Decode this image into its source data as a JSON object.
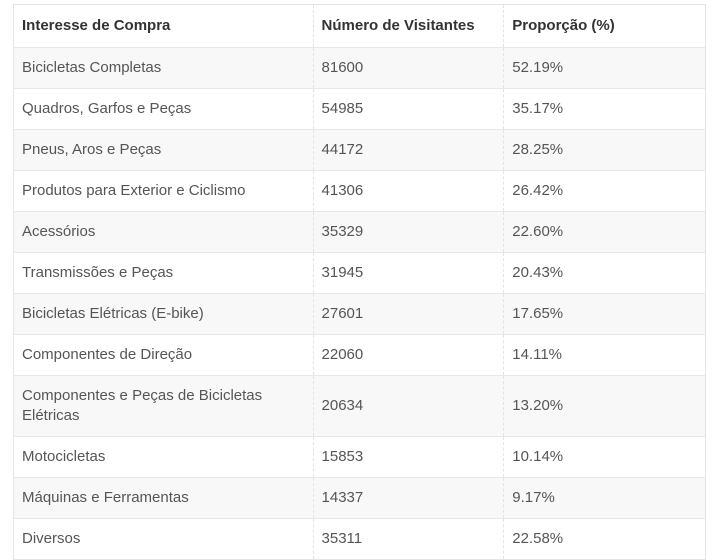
{
  "colors": {
    "stripe_background": "#f8f8f8",
    "row_background": "#ffffff",
    "border": "#e8e8e8",
    "column_separator": "#e3e3e3",
    "header_text": "#333333",
    "cell_text": "#555555"
  },
  "table": {
    "columns": {
      "interest": "Interesse de Compra",
      "visitors": "Número de Visitantes",
      "proportion": "Proporção (%)"
    },
    "rows": [
      {
        "interest": "Bicicletas Completas",
        "visitors": "81600",
        "proportion": "52.19%"
      },
      {
        "interest": "Quadros, Garfos e Peças",
        "visitors": "54985",
        "proportion": "35.17%"
      },
      {
        "interest": "Pneus, Aros e Peças",
        "visitors": "44172",
        "proportion": "28.25%"
      },
      {
        "interest": "Produtos para Exterior e Ciclismo",
        "visitors": "41306",
        "proportion": "26.42%"
      },
      {
        "interest": "Acessórios",
        "visitors": "35329",
        "proportion": "22.60%"
      },
      {
        "interest": "Transmissões e Peças",
        "visitors": "31945",
        "proportion": "20.43%"
      },
      {
        "interest": "Bicicletas Elétricas (E-bike)",
        "visitors": "27601",
        "proportion": "17.65%"
      },
      {
        "interest": "Componentes de Direção",
        "visitors": "22060",
        "proportion": "14.11%"
      },
      {
        "interest": "Componentes e Peças de Bicicletas Elétricas",
        "visitors": "20634",
        "proportion": "13.20%"
      },
      {
        "interest": "Motocicletas",
        "visitors": "15853",
        "proportion": "10.14%"
      },
      {
        "interest": "Máquinas e Ferramentas",
        "visitors": "14337",
        "proportion": "9.17%"
      },
      {
        "interest": "Diversos",
        "visitors": "35311",
        "proportion": "22.58%"
      }
    ]
  },
  "chart_data": {
    "type": "table",
    "title": "",
    "columns": [
      "Interesse de Compra",
      "Número de Visitantes",
      "Proporção (%)"
    ],
    "categories": [
      "Bicicletas Completas",
      "Quadros, Garfos e Peças",
      "Pneus, Aros e Peças",
      "Produtos para Exterior e Ciclismo",
      "Acessórios",
      "Transmissões e Peças",
      "Bicicletas Elétricas (E-bike)",
      "Componentes de Direção",
      "Componentes e Peças de Bicicletas Elétricas",
      "Motocicletas",
      "Máquinas e Ferramentas",
      "Diversos"
    ],
    "series": [
      {
        "name": "Número de Visitantes",
        "values": [
          81600,
          54985,
          44172,
          41306,
          35329,
          31945,
          27601,
          22060,
          20634,
          15853,
          14337,
          35311
        ]
      },
      {
        "name": "Proporção (%)",
        "values": [
          52.19,
          35.17,
          28.25,
          26.42,
          22.6,
          20.43,
          17.65,
          14.11,
          13.2,
          10.14,
          9.17,
          22.58
        ]
      }
    ]
  }
}
